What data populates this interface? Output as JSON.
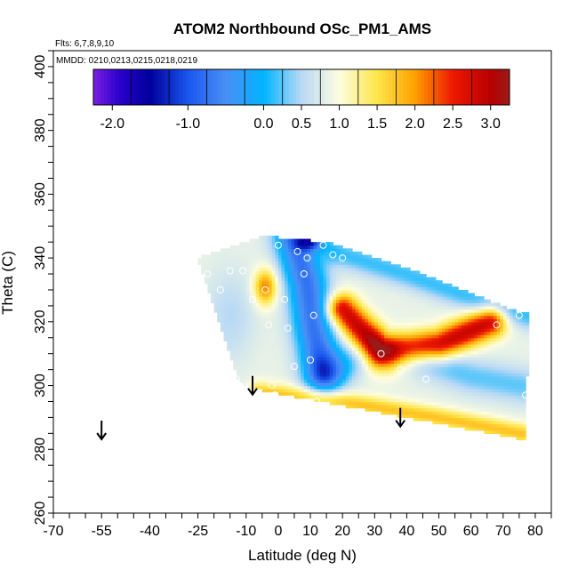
{
  "chart_data": {
    "type": "heatmap",
    "title": "ATOM2 Northbound OSc_PM1_AMS",
    "flights_label": "Flts: 6,7,8,9,10",
    "dates_label": "MMDD: 0210,0213,0215,0218,0219",
    "xlabel": "Latitude (deg N)",
    "ylabel": "Theta (C)",
    "xlim": [
      -70,
      85
    ],
    "ylim": [
      260,
      405
    ],
    "x_ticks": [
      -70,
      -55,
      -40,
      -25,
      -10,
      0,
      10,
      20,
      30,
      40,
      50,
      60,
      70,
      80
    ],
    "y_ticks": [
      260,
      280,
      300,
      320,
      340,
      360,
      380,
      400
    ],
    "colorbar": {
      "range": [
        -2.25,
        3.25
      ],
      "tick_values": [
        -2.0,
        -1.0,
        0.0,
        0.5,
        1.0,
        1.5,
        2.0,
        2.5,
        3.0
      ],
      "tick_labels": [
        "-2.0",
        "-1.0",
        "0.0",
        "0.5",
        "1.0",
        "1.5",
        "2.0",
        "2.5",
        "3.0"
      ],
      "stops": [
        {
          "v": -2.25,
          "c": "#7a1fe0"
        },
        {
          "v": -1.9,
          "c": "#2a00cc"
        },
        {
          "v": -1.5,
          "c": "#00009a"
        },
        {
          "v": -1.0,
          "c": "#1a56ee"
        },
        {
          "v": -0.5,
          "c": "#4a8ff5"
        },
        {
          "v": 0.0,
          "c": "#00b4ff"
        },
        {
          "v": 0.5,
          "c": "#b9d9f5"
        },
        {
          "v": 1.0,
          "c": "#fdfde0"
        },
        {
          "v": 1.5,
          "c": "#fde64a"
        },
        {
          "v": 2.0,
          "c": "#ffa000"
        },
        {
          "v": 2.5,
          "c": "#ee1800"
        },
        {
          "v": 3.0,
          "c": "#b80000"
        },
        {
          "v": 3.25,
          "c": "#9b1a1a"
        }
      ]
    },
    "data_region": [
      [
        -25,
        340
      ],
      [
        -5,
        347
      ],
      [
        15,
        345
      ],
      [
        40,
        337
      ],
      [
        75,
        323
      ],
      [
        78,
        323
      ],
      [
        77,
        283
      ],
      [
        -8,
        299
      ],
      [
        -12,
        301
      ]
    ],
    "features": [
      {
        "type": "blue_band",
        "points": [
          [
            5,
            345
          ],
          [
            10,
            330
          ],
          [
            12,
            315
          ],
          [
            15,
            303
          ],
          [
            25,
            310
          ],
          [
            60,
            305
          ]
        ],
        "value": -0.5
      },
      {
        "type": "red_core",
        "polygon": [
          [
            20,
            325
          ],
          [
            35,
            303
          ],
          [
            60,
            318
          ],
          [
            30,
            305
          ]
        ],
        "value": 2.6
      },
      {
        "type": "orange_blob",
        "center": [
          -4,
          331
        ],
        "value": 2.0
      },
      {
        "type": "yellow_bottom_edge",
        "polygon": [
          [
            -5,
            297
          ],
          [
            20,
            294
          ],
          [
            60,
            288
          ],
          [
            75,
            283
          ],
          [
            75,
            287
          ],
          [
            20,
            297
          ],
          [
            -5,
            299
          ]
        ],
        "value": 1.5
      },
      {
        "type": "dark_top",
        "polygon": [
          [
            8,
            346
          ],
          [
            15,
            346
          ],
          [
            15,
            343
          ],
          [
            8,
            343
          ]
        ],
        "value": -2.0
      }
    ],
    "sample_points": [
      [
        -20,
        344
      ],
      [
        -15,
        336
      ],
      [
        -11,
        336
      ],
      [
        -8,
        327
      ],
      [
        -4,
        330
      ],
      [
        -3,
        319
      ],
      [
        -13,
        302
      ],
      [
        0,
        344
      ],
      [
        6,
        342
      ],
      [
        8,
        335
      ],
      [
        9,
        340
      ],
      [
        11,
        322
      ],
      [
        17,
        341
      ],
      [
        20,
        340
      ],
      [
        14,
        344
      ],
      [
        3,
        318
      ],
      [
        5,
        306
      ],
      [
        10,
        308
      ],
      [
        -2,
        300
      ],
      [
        -1,
        297
      ],
      [
        12,
        295
      ],
      [
        32,
        310
      ],
      [
        38,
        305
      ],
      [
        46,
        302
      ],
      [
        68,
        319
      ],
      [
        75,
        322
      ],
      [
        77,
        297
      ],
      [
        -18,
        330
      ],
      [
        -22,
        335
      ],
      [
        2,
        327
      ]
    ],
    "arrows": [
      [
        -55,
        289
      ],
      [
        -8,
        303
      ],
      [
        38,
        293
      ]
    ]
  }
}
